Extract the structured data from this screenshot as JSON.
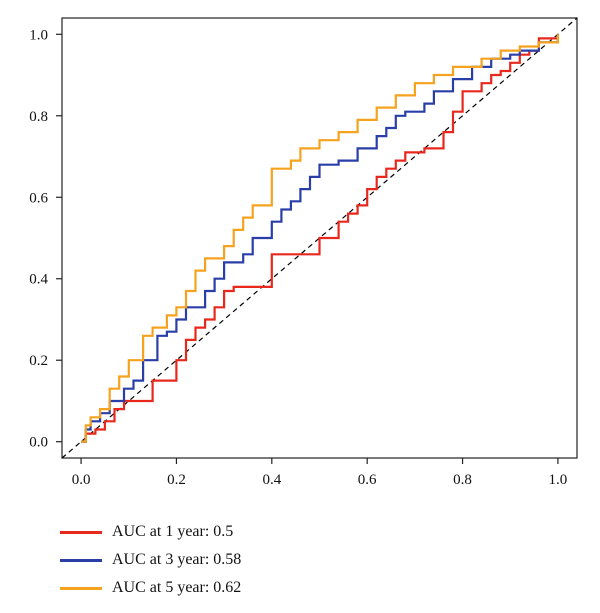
{
  "chart_data": {
    "type": "line",
    "title": "",
    "xlabel": "",
    "ylabel": "",
    "xlim": [
      -0.04,
      1.04
    ],
    "ylim": [
      -0.04,
      1.04
    ],
    "xticks": [
      "0.0",
      "0.2",
      "0.4",
      "0.6",
      "0.8",
      "1.0"
    ],
    "yticks": [
      "0.0",
      "0.2",
      "0.4",
      "0.6",
      "0.8",
      "1.0"
    ],
    "grid": false,
    "legend_position": "bottom-left",
    "reference_line": {
      "style": "dashed",
      "color": "#000000",
      "from": [
        -0.04,
        -0.04
      ],
      "to": [
        1.04,
        1.04
      ]
    },
    "series": [
      {
        "name": "AUC at 1 year: 0.5",
        "color": "#e8281c",
        "x": [
          0.0,
          0.01,
          0.01,
          0.03,
          0.03,
          0.05,
          0.05,
          0.07,
          0.07,
          0.09,
          0.09,
          0.15,
          0.15,
          0.2,
          0.2,
          0.22,
          0.22,
          0.24,
          0.24,
          0.26,
          0.26,
          0.28,
          0.28,
          0.3,
          0.3,
          0.32,
          0.32,
          0.4,
          0.4,
          0.42,
          0.42,
          0.5,
          0.5,
          0.54,
          0.54,
          0.56,
          0.56,
          0.58,
          0.58,
          0.6,
          0.6,
          0.62,
          0.62,
          0.64,
          0.64,
          0.66,
          0.66,
          0.68,
          0.68,
          0.72,
          0.72,
          0.76,
          0.76,
          0.78,
          0.78,
          0.8,
          0.8,
          0.84,
          0.84,
          0.86,
          0.86,
          0.88,
          0.88,
          0.9,
          0.9,
          0.92,
          0.92,
          0.94,
          0.94,
          0.96,
          0.96,
          1.0,
          1.0
        ],
        "y": [
          0.0,
          0.0,
          0.02,
          0.02,
          0.03,
          0.03,
          0.05,
          0.05,
          0.08,
          0.08,
          0.1,
          0.1,
          0.15,
          0.15,
          0.2,
          0.2,
          0.25,
          0.25,
          0.28,
          0.28,
          0.3,
          0.3,
          0.33,
          0.33,
          0.37,
          0.37,
          0.38,
          0.38,
          0.46,
          0.46,
          0.46,
          0.46,
          0.5,
          0.5,
          0.54,
          0.54,
          0.56,
          0.56,
          0.58,
          0.58,
          0.62,
          0.62,
          0.65,
          0.65,
          0.67,
          0.67,
          0.69,
          0.69,
          0.71,
          0.71,
          0.72,
          0.72,
          0.76,
          0.76,
          0.81,
          0.81,
          0.86,
          0.86,
          0.88,
          0.88,
          0.9,
          0.9,
          0.91,
          0.91,
          0.93,
          0.93,
          0.95,
          0.95,
          0.96,
          0.96,
          0.99,
          0.99,
          1.0
        ]
      },
      {
        "name": "AUC at 3 year: 0.58",
        "color": "#2a3ea8",
        "x": [
          0.0,
          0.01,
          0.01,
          0.02,
          0.02,
          0.04,
          0.04,
          0.06,
          0.06,
          0.09,
          0.09,
          0.11,
          0.11,
          0.13,
          0.13,
          0.16,
          0.16,
          0.18,
          0.18,
          0.2,
          0.2,
          0.22,
          0.22,
          0.26,
          0.26,
          0.28,
          0.28,
          0.3,
          0.3,
          0.34,
          0.34,
          0.36,
          0.36,
          0.4,
          0.4,
          0.42,
          0.42,
          0.44,
          0.44,
          0.46,
          0.46,
          0.48,
          0.48,
          0.5,
          0.5,
          0.54,
          0.54,
          0.58,
          0.58,
          0.62,
          0.62,
          0.64,
          0.64,
          0.66,
          0.66,
          0.68,
          0.68,
          0.72,
          0.72,
          0.74,
          0.74,
          0.78,
          0.78,
          0.82,
          0.82,
          0.86,
          0.86,
          0.9,
          0.9,
          0.92,
          0.92,
          0.96,
          0.96,
          1.0,
          1.0
        ],
        "y": [
          0.0,
          0.0,
          0.03,
          0.03,
          0.05,
          0.05,
          0.07,
          0.07,
          0.1,
          0.1,
          0.13,
          0.13,
          0.15,
          0.15,
          0.2,
          0.2,
          0.26,
          0.26,
          0.27,
          0.27,
          0.3,
          0.3,
          0.33,
          0.33,
          0.37,
          0.37,
          0.4,
          0.4,
          0.44,
          0.44,
          0.46,
          0.46,
          0.5,
          0.5,
          0.54,
          0.54,
          0.57,
          0.57,
          0.59,
          0.59,
          0.62,
          0.62,
          0.65,
          0.65,
          0.68,
          0.68,
          0.69,
          0.69,
          0.72,
          0.72,
          0.75,
          0.75,
          0.77,
          0.77,
          0.8,
          0.8,
          0.81,
          0.81,
          0.83,
          0.83,
          0.86,
          0.86,
          0.89,
          0.89,
          0.92,
          0.92,
          0.94,
          0.94,
          0.95,
          0.95,
          0.96,
          0.96,
          0.98,
          0.98,
          1.0
        ]
      },
      {
        "name": "AUC at 5 year: 0.62",
        "color": "#f5a21e",
        "x": [
          0.0,
          0.01,
          0.01,
          0.02,
          0.02,
          0.04,
          0.04,
          0.06,
          0.06,
          0.08,
          0.08,
          0.1,
          0.1,
          0.13,
          0.13,
          0.15,
          0.15,
          0.18,
          0.18,
          0.2,
          0.2,
          0.22,
          0.22,
          0.24,
          0.24,
          0.26,
          0.26,
          0.3,
          0.3,
          0.32,
          0.32,
          0.34,
          0.34,
          0.36,
          0.36,
          0.4,
          0.4,
          0.44,
          0.44,
          0.46,
          0.46,
          0.5,
          0.5,
          0.54,
          0.54,
          0.58,
          0.58,
          0.62,
          0.62,
          0.66,
          0.66,
          0.7,
          0.7,
          0.74,
          0.74,
          0.78,
          0.78,
          0.84,
          0.84,
          0.88,
          0.88,
          0.92,
          0.92,
          0.96,
          0.96,
          1.0,
          1.0
        ],
        "y": [
          0.0,
          0.0,
          0.04,
          0.04,
          0.06,
          0.06,
          0.08,
          0.08,
          0.13,
          0.13,
          0.16,
          0.16,
          0.2,
          0.2,
          0.26,
          0.26,
          0.28,
          0.28,
          0.31,
          0.31,
          0.33,
          0.33,
          0.37,
          0.37,
          0.42,
          0.42,
          0.45,
          0.45,
          0.48,
          0.48,
          0.52,
          0.52,
          0.55,
          0.55,
          0.58,
          0.58,
          0.67,
          0.67,
          0.69,
          0.69,
          0.72,
          0.72,
          0.74,
          0.74,
          0.76,
          0.76,
          0.79,
          0.79,
          0.82,
          0.82,
          0.85,
          0.85,
          0.88,
          0.88,
          0.9,
          0.9,
          0.92,
          0.92,
          0.94,
          0.94,
          0.96,
          0.96,
          0.97,
          0.97,
          0.98,
          0.98,
          1.0
        ]
      }
    ]
  }
}
